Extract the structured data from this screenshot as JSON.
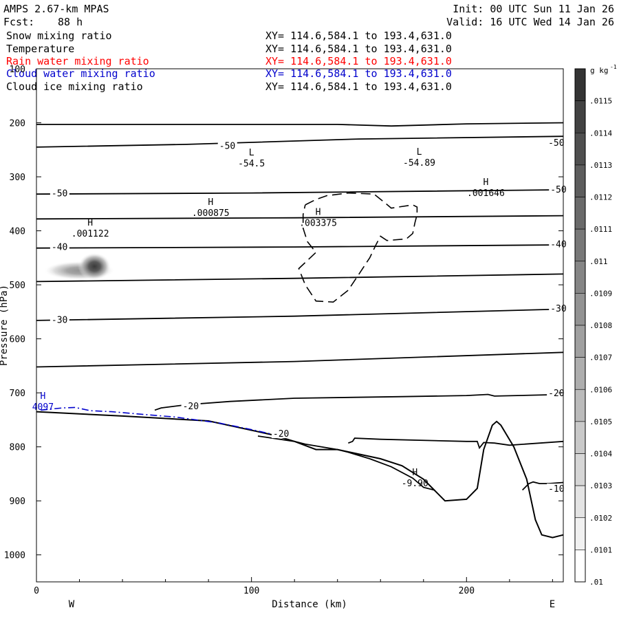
{
  "header": {
    "model": "AMPS 2.67-km MPAS",
    "fcst_label": "Fcst:",
    "fcst_value": "88 h",
    "init": "Init: 00 UTC Sun 11 Jan 26",
    "valid": "Valid: 16 UTC Wed 14 Jan 26"
  },
  "variables": [
    {
      "name": "Snow mixing ratio",
      "xy": "XY= 114.6,584.1 to 193.4,631.0",
      "color": "#000000"
    },
    {
      "name": "Temperature",
      "xy": "XY= 114.6,584.1 to 193.4,631.0",
      "color": "#000000"
    },
    {
      "name": "Rain water mixing ratio",
      "xy": "XY= 114.6,584.1 to 193.4,631.0",
      "color": "#ff0000"
    },
    {
      "name": "Cloud water mixing ratio",
      "xy": "XY= 114.6,584.1 to 193.4,631.0",
      "color": "#0000cc"
    },
    {
      "name": "Cloud ice mixing ratio",
      "xy": "XY= 114.6,584.1 to 193.4,631.0",
      "color": "#000000"
    }
  ],
  "chart_data": {
    "type": "cross-section",
    "xlabel": "Distance (km)",
    "ylabel": "Pressure (hPa)",
    "xlim": [
      0,
      245
    ],
    "ylim": [
      100,
      1050
    ],
    "xticks": [
      0,
      100,
      200
    ],
    "yticks": [
      100,
      200,
      300,
      400,
      500,
      600,
      700,
      800,
      900,
      1000
    ],
    "west_label": "W",
    "east_label": "E",
    "colorbar": {
      "unit": "g kg",
      "unit_exp": "-1",
      "labels": [
        ".0115",
        ".0114",
        ".0113",
        ".0112",
        ".0111",
        ".011",
        ".0109",
        ".0108",
        ".0107",
        ".0106",
        ".0105",
        ".0104",
        ".0103",
        ".0102",
        ".0101",
        ".01"
      ]
    },
    "temperature_isotherms": [
      {
        "points": [
          [
            0,
            203
          ],
          [
            140,
            203
          ],
          [
            165,
            206
          ],
          [
            200,
            202
          ],
          [
            245,
            200
          ]
        ]
      },
      {
        "points": [
          [
            0,
            245
          ],
          [
            70,
            240
          ],
          [
            150,
            230
          ],
          [
            245,
            225
          ]
        ]
      },
      {
        "points": [
          [
            0,
            332
          ],
          [
            100,
            330
          ],
          [
            245,
            324
          ]
        ]
      },
      {
        "points": [
          [
            0,
            378
          ],
          [
            120,
            376
          ],
          [
            245,
            372
          ]
        ]
      },
      {
        "points": [
          [
            0,
            432
          ],
          [
            120,
            430
          ],
          [
            245,
            426
          ]
        ]
      },
      {
        "points": [
          [
            0,
            494
          ],
          [
            120,
            488
          ],
          [
            245,
            480
          ]
        ]
      },
      {
        "points": [
          [
            0,
            566
          ],
          [
            120,
            558
          ],
          [
            245,
            545
          ]
        ]
      },
      {
        "points": [
          [
            0,
            652
          ],
          [
            120,
            642
          ],
          [
            245,
            625
          ]
        ]
      },
      {
        "points": [
          [
            55,
            732
          ],
          [
            58,
            728
          ],
          [
            70,
            722
          ],
          [
            90,
            716
          ],
          [
            120,
            710
          ],
          [
            170,
            707
          ],
          [
            200,
            705
          ],
          [
            210,
            703
          ],
          [
            213,
            706
          ],
          [
            245,
            703
          ]
        ]
      },
      {
        "points": [
          [
            103,
            780
          ],
          [
            120,
            790
          ],
          [
            125,
            795
          ],
          [
            140,
            805
          ],
          [
            145,
            810
          ],
          [
            155,
            822
          ],
          [
            165,
            837
          ],
          [
            175,
            858
          ],
          [
            180,
            875
          ],
          [
            185,
            880
          ]
        ]
      },
      {
        "points": [
          [
            145,
            793
          ],
          [
            147,
            790
          ],
          [
            148,
            784
          ],
          [
            160,
            786
          ],
          [
            200,
            790
          ],
          [
            205,
            790
          ],
          [
            206,
            802
          ],
          [
            208,
            792
          ],
          [
            213,
            793
          ],
          [
            220,
            797
          ],
          [
            245,
            790
          ]
        ]
      },
      {
        "points": [
          [
            226,
            880
          ],
          [
            229,
            868
          ],
          [
            231,
            865
          ],
          [
            234,
            868
          ],
          [
            238,
            868
          ],
          [
            245,
            866
          ]
        ]
      }
    ],
    "temperature_labels": [
      {
        "x": 85,
        "p": 242,
        "text": "-50"
      },
      {
        "x": 238,
        "p": 236,
        "text": "-50"
      },
      {
        "x": 7,
        "p": 330,
        "text": "-50"
      },
      {
        "x": 239,
        "p": 323,
        "text": "-50"
      },
      {
        "x": 7,
        "p": 429,
        "text": "-40"
      },
      {
        "x": 239,
        "p": 424,
        "text": "-40"
      },
      {
        "x": 7,
        "p": 564,
        "text": "-30"
      },
      {
        "x": 239,
        "p": 543,
        "text": "-30"
      },
      {
        "x": 68,
        "p": 724,
        "text": "-20"
      },
      {
        "x": 238,
        "p": 700,
        "text": "-20"
      },
      {
        "x": 110,
        "p": 775,
        "text": "-20"
      },
      {
        "x": 238,
        "p": 877,
        "text": "-10"
      }
    ],
    "terrain": [
      [
        0,
        735
      ],
      [
        40,
        743
      ],
      [
        80,
        752
      ],
      [
        110,
        778
      ],
      [
        120,
        790
      ],
      [
        130,
        805
      ],
      [
        140,
        805
      ],
      [
        160,
        822
      ],
      [
        170,
        835
      ],
      [
        180,
        860
      ],
      [
        185,
        880
      ],
      [
        190,
        900
      ],
      [
        200,
        897
      ],
      [
        205,
        877
      ],
      [
        208,
        805
      ],
      [
        212,
        760
      ],
      [
        214,
        753
      ],
      [
        216,
        760
      ],
      [
        222,
        800
      ],
      [
        228,
        860
      ],
      [
        232,
        935
      ],
      [
        235,
        963
      ],
      [
        240,
        968
      ],
      [
        245,
        963
      ]
    ],
    "cloud_ice_contour": {
      "style": "dashed",
      "points": [
        [
          125,
          352
        ],
        [
          130,
          342
        ],
        [
          135,
          335
        ],
        [
          145,
          330
        ],
        [
          157,
          332
        ],
        [
          162,
          348
        ],
        [
          165,
          358
        ],
        [
          175,
          352
        ],
        [
          177,
          356
        ],
        [
          177,
          370
        ],
        [
          176,
          385
        ],
        [
          175,
          405
        ],
        [
          172,
          415
        ],
        [
          163,
          418
        ],
        [
          160,
          410
        ],
        [
          158,
          425
        ],
        [
          155,
          450
        ],
        [
          150,
          480
        ],
        [
          145,
          510
        ],
        [
          138,
          532
        ],
        [
          130,
          530
        ],
        [
          125,
          500
        ],
        [
          122,
          470
        ],
        [
          130,
          440
        ],
        [
          126,
          420
        ],
        [
          124,
          395
        ],
        [
          124,
          370
        ],
        [
          125,
          352
        ]
      ]
    },
    "cloud_water_contour": {
      "color": "#0000cc",
      "style": "dashed",
      "points": [
        [
          2,
          732
        ],
        [
          12,
          728
        ],
        [
          18,
          727
        ],
        [
          25,
          733
        ],
        [
          35,
          735
        ],
        [
          50,
          740
        ],
        [
          65,
          745
        ],
        [
          85,
          756
        ],
        [
          100,
          768
        ],
        [
          110,
          777
        ]
      ]
    },
    "snow_shading": {
      "center_x": 27,
      "center_p": 466,
      "value_range": [
        0.01,
        0.0115
      ]
    },
    "annotations": [
      {
        "x": 25,
        "p": 393,
        "letter": "H",
        "value": ".001122"
      },
      {
        "x": 81,
        "p": 355,
        "letter": "H",
        "value": ".000875"
      },
      {
        "x": 100,
        "p": 263,
        "letter": "L",
        "value": "-54.5"
      },
      {
        "x": 131,
        "p": 373,
        "letter": "H",
        "value": ".003375"
      },
      {
        "x": 178,
        "p": 262,
        "letter": "L",
        "value": "-54.89"
      },
      {
        "x": 209,
        "p": 318,
        "letter": "H",
        "value": ".001646"
      },
      {
        "x": 176,
        "p": 855,
        "letter": "H",
        "value": "-9.90"
      },
      {
        "x": 3,
        "p": 714,
        "letter": "H",
        "value": "4097",
        "color": "#0000cc"
      }
    ]
  }
}
